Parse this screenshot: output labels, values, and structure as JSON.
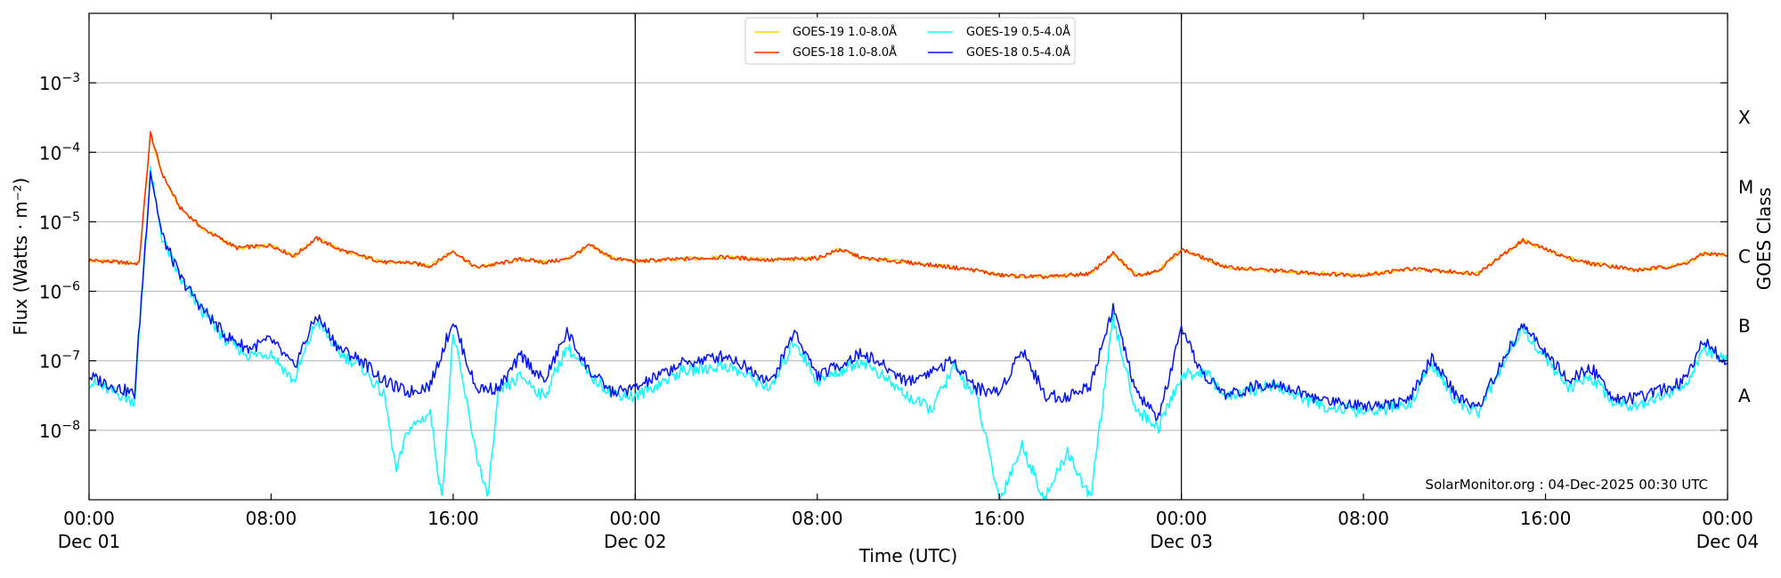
{
  "chart_data": {
    "type": "line",
    "xlabel": "Time (UTC)",
    "ylabel": "Flux (Watts · m⁻²)",
    "ylabel_right": "GOES Class",
    "yscale": "log",
    "ylim": [
      1e-09,
      0.01
    ],
    "xlim_hours": [
      0,
      72
    ],
    "grid": "horizontal",
    "legend_position": "top-center",
    "credit": "SolarMonitor.org : 04-Dec-2025 00:30 UTC",
    "x_ticks": [
      {
        "hour": 0,
        "line1": "00:00",
        "line2": "Dec 01"
      },
      {
        "hour": 8,
        "line1": "08:00",
        "line2": ""
      },
      {
        "hour": 16,
        "line1": "16:00",
        "line2": ""
      },
      {
        "hour": 24,
        "line1": "00:00",
        "line2": "Dec 02"
      },
      {
        "hour": 32,
        "line1": "08:00",
        "line2": ""
      },
      {
        "hour": 40,
        "line1": "16:00",
        "line2": ""
      },
      {
        "hour": 48,
        "line1": "00:00",
        "line2": "Dec 03"
      },
      {
        "hour": 56,
        "line1": "08:00",
        "line2": ""
      },
      {
        "hour": 64,
        "line1": "16:00",
        "line2": ""
      },
      {
        "hour": 72,
        "line1": "00:00",
        "line2": "Dec 04"
      }
    ],
    "day_boundaries_hours": [
      24,
      48
    ],
    "y_ticks": [
      {
        "exp": -8,
        "label": "10",
        "sup": "−8"
      },
      {
        "exp": -7,
        "label": "10",
        "sup": "−7"
      },
      {
        "exp": -6,
        "label": "10",
        "sup": "−6"
      },
      {
        "exp": -5,
        "label": "10",
        "sup": "−5"
      },
      {
        "exp": -4,
        "label": "10",
        "sup": "−4"
      },
      {
        "exp": -3,
        "label": "10",
        "sup": "−3"
      }
    ],
    "goes_classes": [
      {
        "label": "A",
        "exp": -7.5
      },
      {
        "label": "B",
        "exp": -6.5
      },
      {
        "label": "C",
        "exp": -5.5
      },
      {
        "label": "M",
        "exp": -4.5
      },
      {
        "label": "X",
        "exp": -3.5
      }
    ],
    "series": [
      {
        "name": "GOES-19 1.0-8.0Å",
        "color": "#ffd400",
        "points": [
          [
            0,
            2.8e-06
          ],
          [
            2.2,
            2.5e-06
          ],
          [
            2.7,
            0.00018
          ],
          [
            3.2,
            5e-05
          ],
          [
            4,
            1.6e-05
          ],
          [
            5,
            8e-06
          ],
          [
            6.5,
            4.2e-06
          ],
          [
            8,
            4.6e-06
          ],
          [
            9,
            3.2e-06
          ],
          [
            10,
            5.8e-06
          ],
          [
            11,
            4e-06
          ],
          [
            12,
            3.2e-06
          ],
          [
            13,
            2.6e-06
          ],
          [
            14,
            2.6e-06
          ],
          [
            15,
            2.3e-06
          ],
          [
            16,
            3.8e-06
          ],
          [
            17,
            2.2e-06
          ],
          [
            18,
            2.5e-06
          ],
          [
            19,
            2.9e-06
          ],
          [
            20,
            2.6e-06
          ],
          [
            21,
            2.9e-06
          ],
          [
            22,
            4.6e-06
          ],
          [
            23,
            3e-06
          ],
          [
            24,
            2.7e-06
          ],
          [
            26,
            2.9e-06
          ],
          [
            28,
            3.1e-06
          ],
          [
            30,
            2.8e-06
          ],
          [
            32,
            3e-06
          ],
          [
            33,
            4e-06
          ],
          [
            34,
            3e-06
          ],
          [
            36,
            2.6e-06
          ],
          [
            38,
            2.2e-06
          ],
          [
            39,
            2e-06
          ],
          [
            40,
            1.7e-06
          ],
          [
            42,
            1.6e-06
          ],
          [
            44,
            1.8e-06
          ],
          [
            45,
            3.5e-06
          ],
          [
            46,
            1.7e-06
          ],
          [
            47,
            2e-06
          ],
          [
            48,
            4e-06
          ],
          [
            49,
            3e-06
          ],
          [
            50,
            2.2e-06
          ],
          [
            52,
            2e-06
          ],
          [
            54,
            1.8e-06
          ],
          [
            56,
            1.7e-06
          ],
          [
            58,
            2.1e-06
          ],
          [
            60,
            1.9e-06
          ],
          [
            61,
            1.8e-06
          ],
          [
            63,
            5.4e-06
          ],
          [
            65,
            3e-06
          ],
          [
            66,
            2.5e-06
          ],
          [
            67,
            2.3e-06
          ],
          [
            68,
            2e-06
          ],
          [
            70,
            2.4e-06
          ],
          [
            71,
            3.5e-06
          ],
          [
            72,
            3.3e-06
          ]
        ]
      },
      {
        "name": "GOES-18 1.0-8.0Å",
        "color": "#ff2a00",
        "points": [
          [
            0,
            2.8e-06
          ],
          [
            2.2,
            2.5e-06
          ],
          [
            2.7,
            0.00019
          ],
          [
            3.2,
            5e-05
          ],
          [
            4,
            1.6e-05
          ],
          [
            5,
            8e-06
          ],
          [
            6.5,
            4.2e-06
          ],
          [
            8,
            4.6e-06
          ],
          [
            9,
            3.2e-06
          ],
          [
            10,
            5.8e-06
          ],
          [
            11,
            4e-06
          ],
          [
            12,
            3.2e-06
          ],
          [
            13,
            2.6e-06
          ],
          [
            14,
            2.6e-06
          ],
          [
            15,
            2.3e-06
          ],
          [
            16,
            3.8e-06
          ],
          [
            17,
            2.2e-06
          ],
          [
            18,
            2.5e-06
          ],
          [
            19,
            2.9e-06
          ],
          [
            20,
            2.6e-06
          ],
          [
            21,
            2.9e-06
          ],
          [
            22,
            4.6e-06
          ],
          [
            23,
            3e-06
          ],
          [
            24,
            2.7e-06
          ],
          [
            26,
            2.9e-06
          ],
          [
            28,
            3.1e-06
          ],
          [
            30,
            2.8e-06
          ],
          [
            32,
            3e-06
          ],
          [
            33,
            4e-06
          ],
          [
            34,
            3e-06
          ],
          [
            36,
            2.6e-06
          ],
          [
            38,
            2.2e-06
          ],
          [
            39,
            2e-06
          ],
          [
            40,
            1.7e-06
          ],
          [
            42,
            1.6e-06
          ],
          [
            44,
            1.8e-06
          ],
          [
            45,
            3.5e-06
          ],
          [
            46,
            1.7e-06
          ],
          [
            47,
            2e-06
          ],
          [
            48,
            4e-06
          ],
          [
            49,
            3e-06
          ],
          [
            50,
            2.2e-06
          ],
          [
            52,
            2e-06
          ],
          [
            54,
            1.8e-06
          ],
          [
            56,
            1.7e-06
          ],
          [
            58,
            2.1e-06
          ],
          [
            60,
            1.9e-06
          ],
          [
            61,
            1.8e-06
          ],
          [
            63,
            5.4e-06
          ],
          [
            65,
            3e-06
          ],
          [
            66,
            2.5e-06
          ],
          [
            67,
            2.3e-06
          ],
          [
            68,
            2e-06
          ],
          [
            70,
            2.4e-06
          ],
          [
            71,
            3.5e-06
          ],
          [
            72,
            3.3e-06
          ]
        ]
      },
      {
        "name": "GOES-19 0.5-4.0Å",
        "color": "#00ffff",
        "points": [
          [
            0,
            5e-08
          ],
          [
            2,
            2.6e-08
          ],
          [
            2.7,
            5.2e-05
          ],
          [
            3.2,
            6e-06
          ],
          [
            4,
            1.5e-06
          ],
          [
            5,
            5e-07
          ],
          [
            6,
            2e-07
          ],
          [
            7,
            1.2e-07
          ],
          [
            8,
            1.3e-07
          ],
          [
            9,
            5e-08
          ],
          [
            10,
            3.8e-07
          ],
          [
            11,
            1.3e-07
          ],
          [
            12,
            8e-08
          ],
          [
            13,
            3e-08
          ],
          [
            13.5,
            2.5e-09
          ],
          [
            14,
            1e-08
          ],
          [
            15,
            1.8e-08
          ],
          [
            15.5,
            1e-09
          ],
          [
            16,
            2.5e-07
          ],
          [
            17,
            5e-09
          ],
          [
            17.5,
            1e-09
          ],
          [
            18,
            3.5e-08
          ],
          [
            19,
            6e-08
          ],
          [
            20,
            3e-08
          ],
          [
            21,
            1.6e-07
          ],
          [
            22,
            6e-08
          ],
          [
            23,
            3.5e-08
          ],
          [
            24,
            3e-08
          ],
          [
            26,
            7e-08
          ],
          [
            28,
            8.5e-08
          ],
          [
            30,
            4e-08
          ],
          [
            31,
            2e-07
          ],
          [
            32,
            5e-08
          ],
          [
            34,
            1e-07
          ],
          [
            36,
            3e-08
          ],
          [
            37,
            2e-08
          ],
          [
            38,
            8e-08
          ],
          [
            39,
            3e-08
          ],
          [
            40,
            1e-09
          ],
          [
            41,
            6e-09
          ],
          [
            42,
            1e-09
          ],
          [
            43,
            5e-09
          ],
          [
            44,
            1e-09
          ],
          [
            45,
            4e-07
          ],
          [
            46,
            2e-08
          ],
          [
            47,
            1.1e-08
          ],
          [
            48,
            6e-08
          ],
          [
            49,
            7e-08
          ],
          [
            50,
            3e-08
          ],
          [
            52,
            4.5e-08
          ],
          [
            54,
            2.3e-08
          ],
          [
            56,
            1.8e-08
          ],
          [
            58,
            2.3e-08
          ],
          [
            59,
            9e-08
          ],
          [
            60,
            2.8e-08
          ],
          [
            61,
            1.7e-08
          ],
          [
            63,
            3e-07
          ],
          [
            65,
            4e-08
          ],
          [
            66,
            6e-08
          ],
          [
            67,
            2.5e-08
          ],
          [
            68,
            2.3e-08
          ],
          [
            70,
            4e-08
          ],
          [
            71,
            1.4e-07
          ],
          [
            72,
            1e-07
          ]
        ]
      },
      {
        "name": "GOES-18 0.5-4.0Å",
        "color": "#0010ff",
        "points": [
          [
            0,
            6e-08
          ],
          [
            2,
            3.3e-08
          ],
          [
            2.7,
            5.5e-05
          ],
          [
            3.2,
            6.5e-06
          ],
          [
            4,
            1.6e-06
          ],
          [
            5,
            5.5e-07
          ],
          [
            6,
            2.3e-07
          ],
          [
            7,
            1.5e-07
          ],
          [
            8,
            2e-07
          ],
          [
            9,
            8e-08
          ],
          [
            10,
            4.5e-07
          ],
          [
            11,
            1.5e-07
          ],
          [
            12,
            1e-07
          ],
          [
            13,
            5e-08
          ],
          [
            14,
            3.5e-08
          ],
          [
            15,
            4.5e-08
          ],
          [
            16,
            3.8e-07
          ],
          [
            17,
            4e-08
          ],
          [
            18,
            4e-08
          ],
          [
            19,
            1.2e-07
          ],
          [
            20,
            5e-08
          ],
          [
            21,
            2.6e-07
          ],
          [
            22,
            7e-08
          ],
          [
            23,
            3.5e-08
          ],
          [
            24,
            4e-08
          ],
          [
            26,
            9e-08
          ],
          [
            28,
            1.2e-07
          ],
          [
            30,
            5e-08
          ],
          [
            31,
            2.7e-07
          ],
          [
            32,
            6e-08
          ],
          [
            34,
            1.3e-07
          ],
          [
            36,
            5e-08
          ],
          [
            38,
            1e-07
          ],
          [
            39,
            4e-08
          ],
          [
            40,
            3.5e-08
          ],
          [
            41,
            1.5e-07
          ],
          [
            42,
            3.2e-08
          ],
          [
            43,
            3e-08
          ],
          [
            44,
            4.5e-08
          ],
          [
            45,
            6e-07
          ],
          [
            46,
            3.5e-08
          ],
          [
            47,
            1.5e-08
          ],
          [
            48,
            2.7e-07
          ],
          [
            49,
            6e-08
          ],
          [
            50,
            3.2e-08
          ],
          [
            52,
            5e-08
          ],
          [
            54,
            2.8e-08
          ],
          [
            56,
            2.3e-08
          ],
          [
            58,
            2.6e-08
          ],
          [
            59,
            1.1e-07
          ],
          [
            60,
            3.4e-08
          ],
          [
            61,
            2e-08
          ],
          [
            63,
            3.4e-07
          ],
          [
            65,
            5e-08
          ],
          [
            66,
            8e-08
          ],
          [
            67,
            3e-08
          ],
          [
            68,
            2.8e-08
          ],
          [
            70,
            5e-08
          ],
          [
            71,
            2e-07
          ],
          [
            72,
            9e-08
          ]
        ]
      }
    ]
  }
}
